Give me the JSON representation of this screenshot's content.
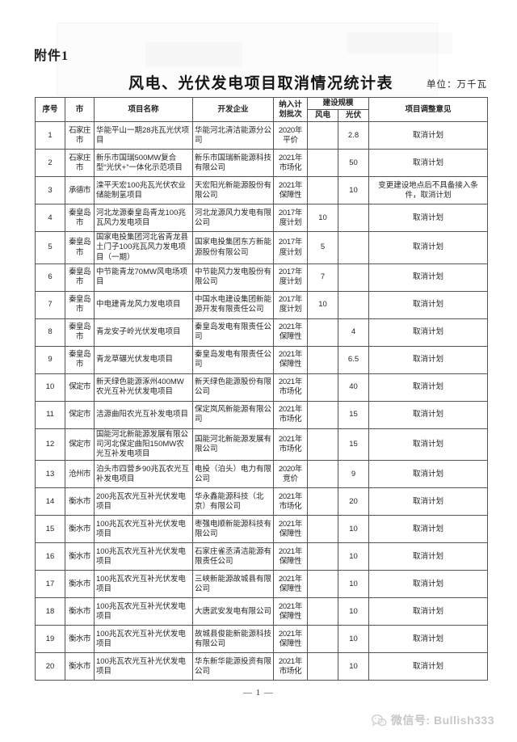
{
  "document": {
    "attachment_label": "附件1",
    "title": "风电、光伏发电项目取消情况统计表",
    "unit_label": "单位：万千瓦",
    "page_number": "— 1 —",
    "watermark_text": "微信号: Bullish333"
  },
  "colors": {
    "table_border": "#565450",
    "text": "#262626",
    "watermark": "#c7c7c5"
  },
  "table": {
    "headers": {
      "index": "序号",
      "city": "市",
      "project": "项目名称",
      "developer": "开发企业",
      "batch": "纳入计划批次",
      "scale_group": "建设规模",
      "wind": "风电",
      "solar": "光伏",
      "opinion": "项目调整意见"
    },
    "rows": [
      {
        "index": "1",
        "city": "石家庄市",
        "project": "华能平山一期28兆瓦光伏项目",
        "developer": "华能河北清洁能源分公司",
        "batch": "2020年平价",
        "wind": "",
        "solar": "2.8",
        "opinion": "取消计划"
      },
      {
        "index": "2",
        "city": "石家庄市",
        "project": "新乐市国瑞500MW复合型“光伏+”一体化示范项目",
        "developer": "新乐市国瑞新能源科技有限公司",
        "batch": "2021年市场化",
        "wind": "",
        "solar": "50",
        "opinion": "取消计划"
      },
      {
        "index": "3",
        "city": "承德市",
        "project": "滦平天宏100兆瓦光伏农业储能制氢项目",
        "developer": "天宏阳光新能源股份有限公司",
        "batch": "2021年保障性",
        "wind": "",
        "solar": "10",
        "opinion": "变更建设地点后不具备接入条件，取消计划"
      },
      {
        "index": "4",
        "city": "秦皇岛市",
        "project": "河北龙源秦皇岛青龙100兆瓦风力发电项目",
        "developer": "河北龙源风力发电有限公司",
        "batch": "2017年度计划",
        "wind": "10",
        "solar": "",
        "opinion": "取消计划"
      },
      {
        "index": "5",
        "city": "秦皇岛市",
        "project": "国家电投集团河北省青龙县土门子100兆瓦风力发电项目（一期）",
        "developer": "国家电投集团东方新能源股份有限公司",
        "batch": "2017年度计划",
        "wind": "5",
        "solar": "",
        "opinion": "取消计划"
      },
      {
        "index": "6",
        "city": "秦皇岛市",
        "project": "中节能青龙70MW风电场项目",
        "developer": "中节能风力发电股份有限公司",
        "batch": "2017年度计划",
        "wind": "7",
        "solar": "",
        "opinion": "取消计划"
      },
      {
        "index": "7",
        "city": "秦皇岛市",
        "project": "中电建青龙风力发电项目",
        "developer": "中国水电建设集团新能源开发有限责任公司",
        "batch": "2017年度计划",
        "wind": "10",
        "solar": "",
        "opinion": "取消计划"
      },
      {
        "index": "8",
        "city": "秦皇岛市",
        "project": "青龙安子岭光伏发电项目",
        "developer": "秦皇岛发电有限责任公司",
        "batch": "2021年保障性",
        "wind": "",
        "solar": "4",
        "opinion": "取消计划"
      },
      {
        "index": "9",
        "city": "秦皇岛市",
        "project": "青龙草碾光伏发电项目",
        "developer": "秦皇岛发电有限责任公司",
        "batch": "2021年保障性",
        "wind": "",
        "solar": "6.5",
        "opinion": "取消计划"
      },
      {
        "index": "10",
        "city": "保定市",
        "project": "新天绿色能源涿州400MW农光互补光伏发电项目",
        "developer": "新天绿色能源股份有限公司",
        "batch": "2021年市场化",
        "wind": "",
        "solar": "40",
        "opinion": "取消计划"
      },
      {
        "index": "11",
        "city": "保定市",
        "project": "洁源曲阳农光互补发电项目",
        "developer": "保定岚风新能源有限公司",
        "batch": "2021年市场化",
        "wind": "",
        "solar": "15",
        "opinion": "取消计划"
      },
      {
        "index": "12",
        "city": "保定市",
        "project": "国能河北新能源发展有限公司河北保定曲阳150MW农光互补发电项目",
        "developer": "国能河北新能源发展有限公司",
        "batch": "2021年市场化",
        "wind": "",
        "solar": "15",
        "opinion": "取消计划"
      },
      {
        "index": "13",
        "city": "沧州市",
        "project": "泊头市四营乡90兆瓦农光互补发电项目",
        "developer": "电投（泊头）电力有限公司",
        "batch": "2020年竞价",
        "wind": "",
        "solar": "9",
        "opinion": "取消计划"
      },
      {
        "index": "14",
        "city": "衡水市",
        "project": "200兆瓦农光互补光伏发电项目",
        "developer": "华永鑫能源科技（北京）有限公司",
        "batch": "2021年市场化",
        "wind": "",
        "solar": "20",
        "opinion": "取消计划"
      },
      {
        "index": "15",
        "city": "衡水市",
        "project": "100兆瓦农光互补光伏发电项目",
        "developer": "枣强电顺新能源科技有限公司",
        "batch": "2021年保障性",
        "wind": "",
        "solar": "10",
        "opinion": "取消计划"
      },
      {
        "index": "16",
        "city": "衡水市",
        "project": "100兆瓦农光互补光伏发电项目",
        "developer": "石家庄雀丞清洁能源有限责任公司",
        "batch": "2021年保障性",
        "wind": "",
        "solar": "10",
        "opinion": "取消计划"
      },
      {
        "index": "17",
        "city": "衡水市",
        "project": "100兆瓦农光互补光伏发电项目",
        "developer": "三峡新能源故城县有限公司",
        "batch": "2021年保障性",
        "wind": "",
        "solar": "10",
        "opinion": "取消计划"
      },
      {
        "index": "18",
        "city": "衡水市",
        "project": "100兆瓦农光互补光伏发电项目",
        "developer": "大唐武安发电有限公司",
        "batch": "2021年保障性",
        "wind": "",
        "solar": "10",
        "opinion": "取消计划"
      },
      {
        "index": "19",
        "city": "衡水市",
        "project": "100兆瓦农光互补光伏发电项目",
        "developer": "故城县俊能新能源科技有限公司",
        "batch": "2021年保障性",
        "wind": "",
        "solar": "10",
        "opinion": "取消计划"
      },
      {
        "index": "20",
        "city": "衡水市",
        "project": "100兆瓦农光互补光伏发电项目",
        "developer": "华东新华能源投资有限公司",
        "batch": "2021年市场化",
        "wind": "",
        "solar": "10",
        "opinion": "取消计划"
      }
    ]
  }
}
